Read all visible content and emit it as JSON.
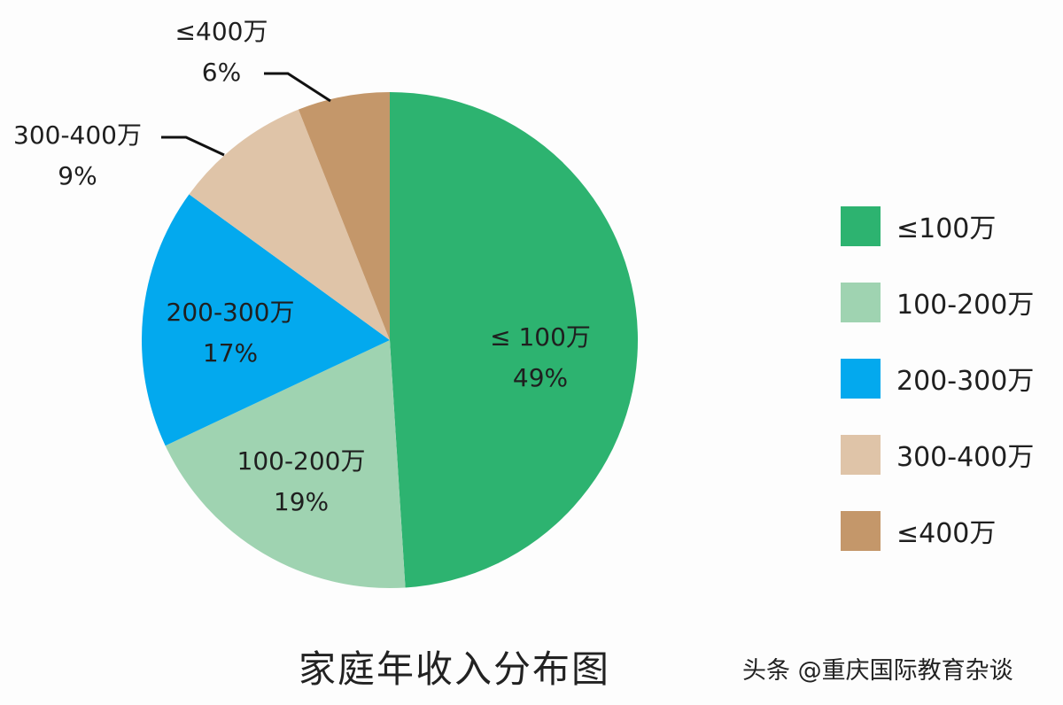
{
  "chart_data": {
    "type": "pie",
    "title": "家庭年收入分布图",
    "categories": [
      "≤100万",
      "100-200万",
      "200-300万",
      "300-400万",
      "≤400万"
    ],
    "values": [
      49,
      19,
      17,
      9,
      6
    ],
    "unit": "%",
    "colors": [
      "#2DB370",
      "#9FD3B1",
      "#03A9EE",
      "#DFC4A8",
      "#C4976A"
    ],
    "start_angle": "12 o'clock",
    "direction": "clockwise",
    "legend_position": "right"
  },
  "labels": {
    "s0": {
      "name": "≤ 100万",
      "pct": "49%"
    },
    "s1": {
      "name": "100-200万",
      "pct": "19%"
    },
    "s2": {
      "name": "200-300万",
      "pct": "17%"
    },
    "s3": {
      "name": "300-400万",
      "pct": "9%"
    },
    "s4": {
      "name": "≤400万",
      "pct": "6%"
    }
  },
  "legend": [
    {
      "label": "≤100万",
      "color": "#2DB370"
    },
    {
      "label": "100-200万",
      "color": "#9FD3B1"
    },
    {
      "label": "200-300万",
      "color": "#03A9EE"
    },
    {
      "label": "300-400万",
      "color": "#DFC4A8"
    },
    {
      "label": "≤400万",
      "color": "#C4976A"
    }
  ],
  "title": "家庭年收入分布图",
  "watermark": "头条 @重庆国际教育杂谈"
}
